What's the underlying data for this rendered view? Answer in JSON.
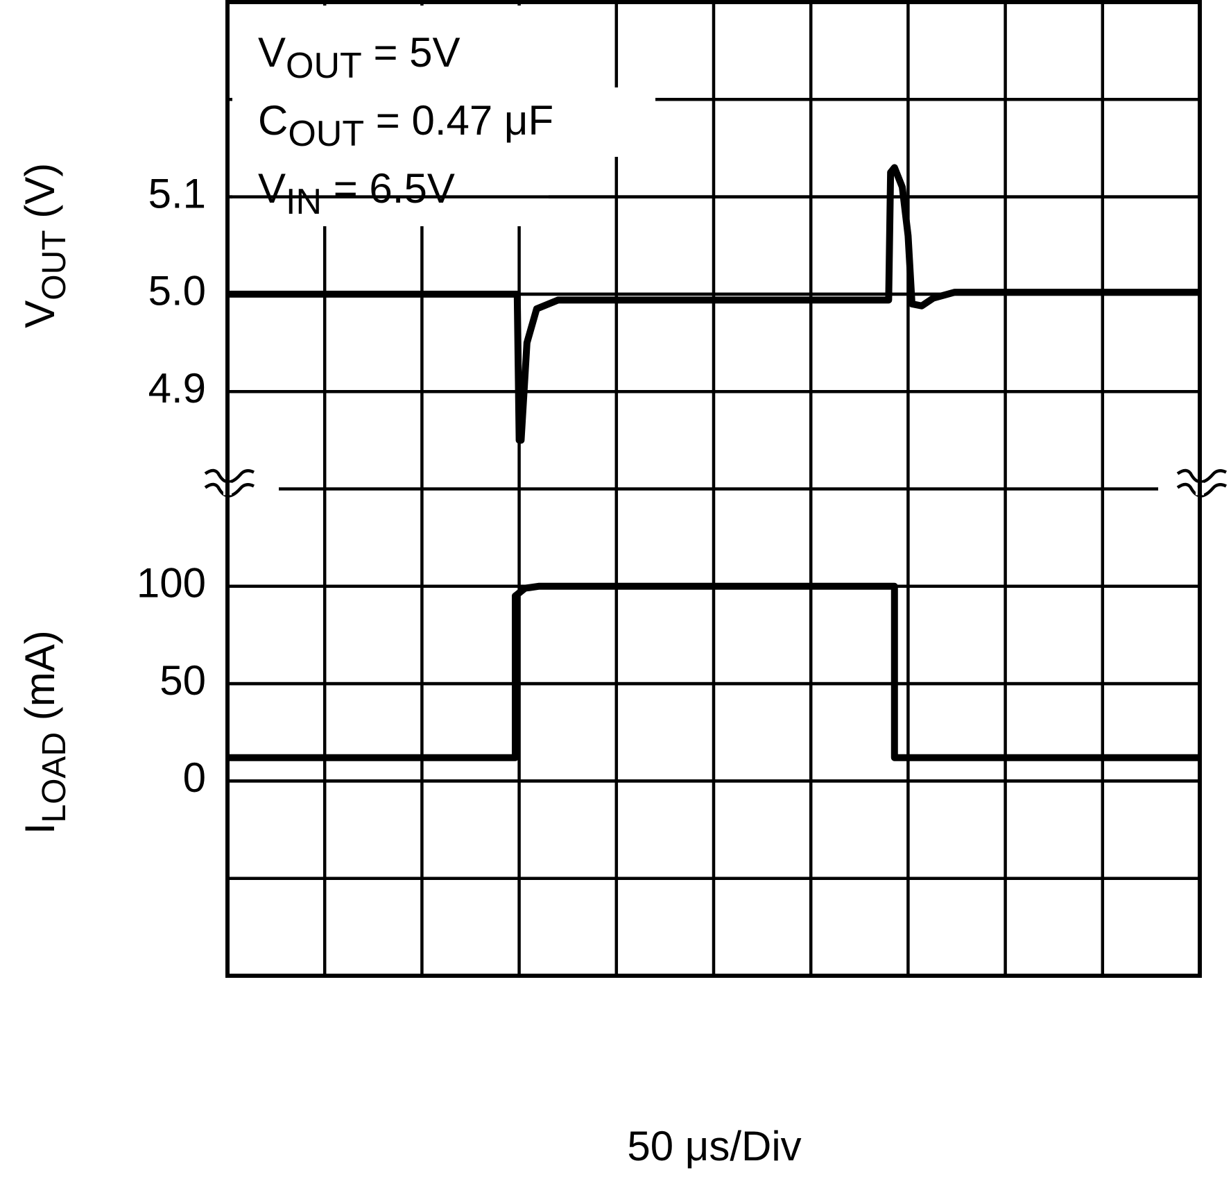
{
  "chart_data": [
    {
      "type": "line",
      "ylabel": {
        "main": "V",
        "sub": "OUT",
        "rest": "  (V)"
      },
      "annotations": [
        {
          "main": "V",
          "sub": "OUT",
          "rest": " = 5V"
        },
        {
          "main": "C",
          "sub": "OUT",
          "rest": " = 0.47 μF"
        },
        {
          "main": "V",
          "sub": "IN",
          "rest": " = 6.5V"
        }
      ],
      "xlim": [
        0,
        500
      ],
      "ylim": [
        4.8,
        5.3
      ],
      "yticks": [
        4.9,
        {
          "value": 5,
          "label": "5.0"
        },
        5.1
      ],
      "grid": true,
      "color": "#000000",
      "x": [
        0,
        149,
        150,
        151,
        154,
        159,
        170,
        340,
        341,
        343,
        347,
        350,
        352,
        357,
        363,
        374,
        500
      ],
      "values": [
        5.0,
        5.0,
        4.85,
        4.85,
        4.95,
        4.985,
        4.994,
        4.994,
        5.125,
        5.13,
        5.11,
        5.06,
        4.99,
        4.988,
        4.996,
        5.002,
        5.002
      ]
    },
    {
      "type": "line",
      "ylabel": {
        "main": "I",
        "sub": "LOAD",
        "rest": "  (mA)"
      },
      "xlabel": "50 μs/Div",
      "xlim": [
        0,
        500
      ],
      "ylim": [
        -100,
        150
      ],
      "yticks": [
        0,
        50,
        100
      ],
      "grid": true,
      "color": "#000000",
      "x": [
        0,
        148,
        148,
        153,
        160,
        343,
        343,
        500
      ],
      "values": [
        12,
        12,
        95,
        99,
        100,
        100,
        12,
        12
      ]
    }
  ]
}
